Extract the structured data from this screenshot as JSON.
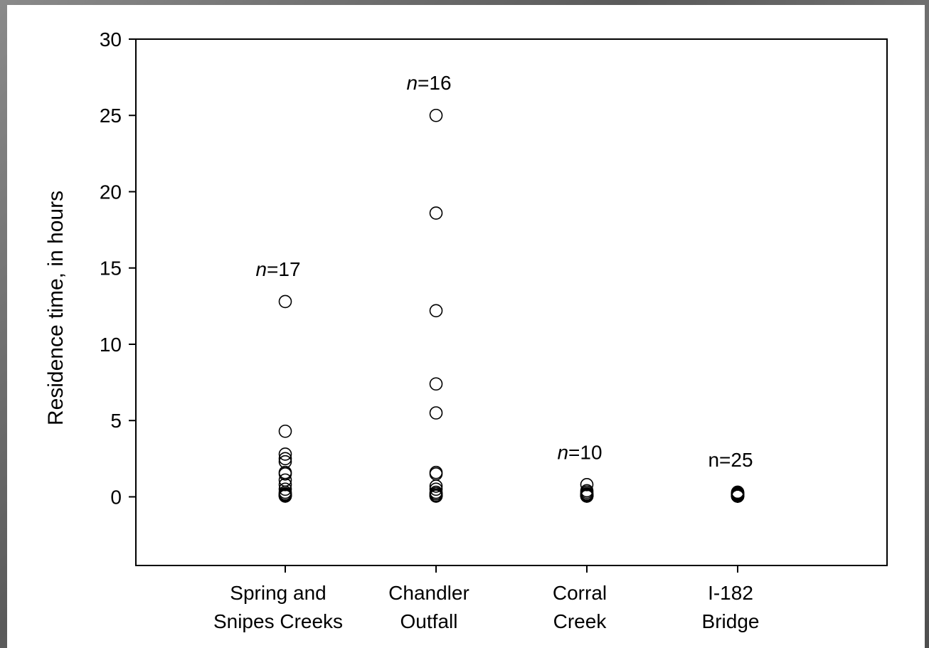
{
  "chart_data": {
    "type": "scatter",
    "title": "",
    "xlabel": "",
    "ylabel": "Residence time, in hours",
    "ylim": [
      -4.5,
      30
    ],
    "yticks": [
      0,
      5,
      10,
      15,
      20,
      25,
      30
    ],
    "grid": false,
    "categories": [
      {
        "lines": [
          "Spring and",
          "Snipes Creeks"
        ],
        "n_label": "n=17",
        "n_italic": true,
        "values": [
          12.8,
          4.3,
          2.8,
          2.5,
          2.3,
          1.6,
          1.5,
          1.1,
          0.8,
          0.5,
          0.3,
          0.2,
          0.15,
          0.1,
          0.1,
          0.05,
          0.05
        ]
      },
      {
        "lines": [
          "Chandler",
          "Outfall"
        ],
        "n_label": "n=16",
        "n_italic": true,
        "values": [
          25.0,
          18.6,
          12.2,
          7.4,
          5.5,
          1.6,
          1.5,
          0.7,
          0.5,
          0.3,
          0.2,
          0.2,
          0.1,
          0.1,
          0.05,
          0.05
        ]
      },
      {
        "lines": [
          "Corral",
          "Creek"
        ],
        "n_label": "n=10",
        "n_italic": true,
        "values": [
          0.8,
          0.4,
          0.3,
          0.2,
          0.15,
          0.1,
          0.1,
          0.05,
          0.05,
          0.05
        ]
      },
      {
        "lines": [
          "I-182",
          "Bridge"
        ],
        "n_label": "n=25",
        "n_italic": false,
        "values": [
          0.3,
          0.3,
          0.25,
          0.2,
          0.2,
          0.15,
          0.15,
          0.1,
          0.1,
          0.1,
          0.1,
          0.1,
          0.05,
          0.05,
          0.05,
          0.05,
          0.05,
          0.05,
          0.05,
          0.05,
          0.05,
          0.05,
          0.05,
          0.05,
          0.05
        ]
      }
    ]
  }
}
